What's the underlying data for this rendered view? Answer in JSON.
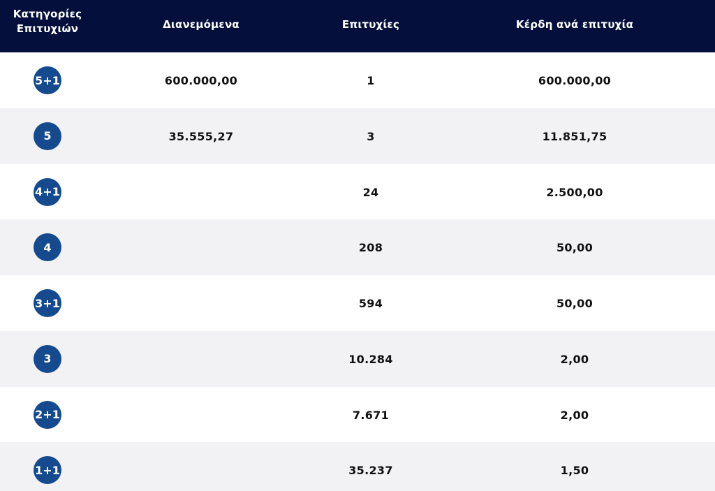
{
  "header": {
    "categories_line1": "Κατηγορίες",
    "categories_line2": "Επιτυχιών",
    "distributed": "Διανεμόμενα",
    "winners": "Επιτυχίες",
    "prize_per_winner": "Κέρδη ανά επιτυχία"
  },
  "rows": [
    {
      "category": "5+1",
      "distributed": "600.000,00",
      "winners": "1",
      "prize": "600.000,00"
    },
    {
      "category": "5",
      "distributed": "35.555,27",
      "winners": "3",
      "prize": "11.851,75"
    },
    {
      "category": "4+1",
      "distributed": "",
      "winners": "24",
      "prize": "2.500,00"
    },
    {
      "category": "4",
      "distributed": "",
      "winners": "208",
      "prize": "50,00"
    },
    {
      "category": "3+1",
      "distributed": "",
      "winners": "594",
      "prize": "50,00"
    },
    {
      "category": "3",
      "distributed": "",
      "winners": "10.284",
      "prize": "2,00"
    },
    {
      "category": "2+1",
      "distributed": "",
      "winners": "7.671",
      "prize": "2,00"
    },
    {
      "category": "1+1",
      "distributed": "",
      "winners": "35.237",
      "prize": "1,50"
    }
  ],
  "colors": {
    "header_bg": "#040f3b",
    "badge_bg": "#154a8f",
    "row_alt_bg": "#f2f2f4"
  }
}
